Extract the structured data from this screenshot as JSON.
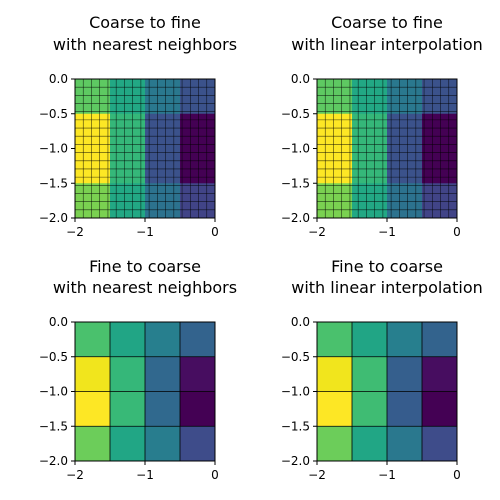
{
  "chart_data": [
    {
      "type": "heatmap",
      "title": "Coarse to fine\nwith nearest neighbors",
      "xlim": [
        -2,
        0
      ],
      "ylim": [
        -2,
        0
      ],
      "xticks": [
        -2,
        -1,
        0
      ],
      "yticks": [
        0.0,
        -0.5,
        -1.0,
        -1.5,
        -2.0
      ],
      "xtick_labels": [
        "−2",
        "−1",
        "0"
      ],
      "ytick_labels": [
        "0.0",
        "−0.5",
        "−1.0",
        "−1.5",
        "−2.0"
      ],
      "grid_lines": 17,
      "row_colors": [
        [
          "#5ec962",
          "#22a884",
          "#2a788e",
          "#3b528b"
        ],
        [
          "#fde725",
          "#35b779",
          "#3b528b",
          "#440154"
        ],
        [
          "#fde725",
          "#35b779",
          "#3b528b",
          "#440154"
        ],
        [
          "#7ad151",
          "#22a884",
          "#2c728e",
          "#414487"
        ]
      ]
    },
    {
      "type": "heatmap",
      "title": "Coarse to fine\nwith linear interpolation",
      "xlim": [
        -2,
        0
      ],
      "ylim": [
        -2,
        0
      ],
      "xticks": [
        -2,
        -1,
        0
      ],
      "yticks": [
        0.0,
        -0.5,
        -1.0,
        -1.5,
        -2.0
      ],
      "xtick_labels": [
        "−2",
        "−1",
        "0"
      ],
      "ytick_labels": [
        "0.0",
        "−0.5",
        "−1.0",
        "−1.5",
        "−2.0"
      ],
      "grid_lines": 17,
      "row_colors": [
        [
          "#5ec962",
          "#22a884",
          "#2a788e",
          "#3b528b"
        ],
        [
          "#fde725",
          "#35b779",
          "#3b528b",
          "#440154"
        ],
        [
          "#fde725",
          "#35b779",
          "#3b528b",
          "#440154"
        ],
        [
          "#7ad151",
          "#22a884",
          "#2c728e",
          "#414487"
        ]
      ]
    },
    {
      "type": "heatmap",
      "title": "Fine to coarse\nwith nearest neighbors",
      "xlim": [
        -2,
        0
      ],
      "ylim": [
        -2,
        0
      ],
      "xticks": [
        -2,
        -1,
        0
      ],
      "yticks": [
        0.0,
        -0.5,
        -1.0,
        -1.5,
        -2.0
      ],
      "xtick_labels": [
        "−2",
        "−1",
        "0"
      ],
      "ytick_labels": [
        "0.0",
        "−0.5",
        "−1.0",
        "−1.5",
        "−2.0"
      ],
      "grid_lines": 0,
      "row_colors": [
        [
          "#4ac16d",
          "#21a585",
          "#277f8e",
          "#33638d"
        ],
        [
          "#f1e51d",
          "#35b779",
          "#31688e",
          "#470d60"
        ],
        [
          "#fde725",
          "#38b977",
          "#30698e",
          "#440154"
        ],
        [
          "#6ccd5a",
          "#21a685",
          "#287d8e",
          "#3e4c8a"
        ]
      ]
    },
    {
      "type": "heatmap",
      "title": "Fine to coarse\nwith linear interpolation",
      "xlim": [
        -2,
        0
      ],
      "ylim": [
        -2,
        0
      ],
      "xticks": [
        -2,
        -1,
        0
      ],
      "yticks": [
        0.0,
        -0.5,
        -1.0,
        -1.5,
        -2.0
      ],
      "xtick_labels": [
        "−2",
        "−1",
        "0"
      ],
      "ytick_labels": [
        "0.0",
        "−0.5",
        "−1.0",
        "−1.5",
        "−2.0"
      ],
      "grid_lines": 0,
      "row_colors": [
        [
          "#4ac16d",
          "#21a585",
          "#277f8e",
          "#33638d"
        ],
        [
          "#f1e51d",
          "#3fbc73",
          "#355f8d",
          "#470d60"
        ],
        [
          "#fde725",
          "#3fbc73",
          "#365c8d",
          "#440154"
        ],
        [
          "#6ccd5a",
          "#21a685",
          "#2a788e",
          "#3e4c8a"
        ]
      ]
    }
  ]
}
